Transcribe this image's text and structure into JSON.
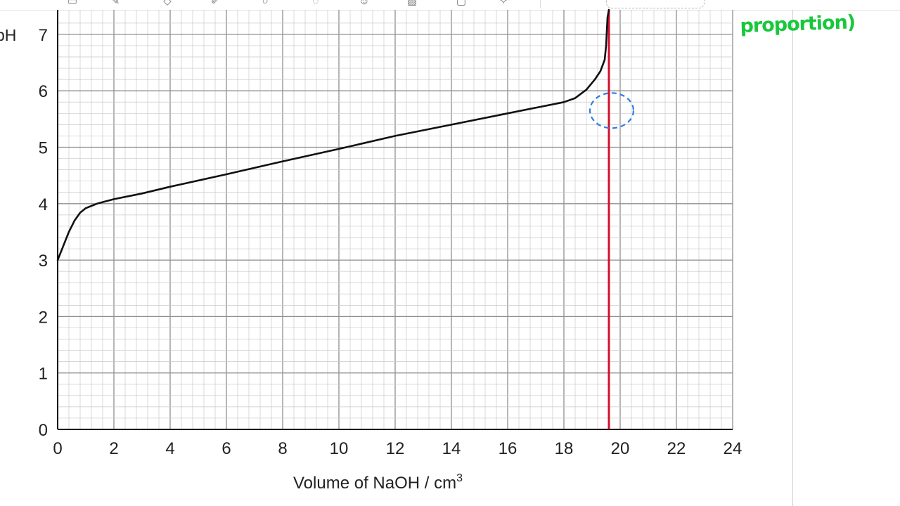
{
  "toolbar": {
    "icons": [
      "window-icon",
      "pen-icon",
      "eraser-icon",
      "highlighter-icon",
      "shapes-icon",
      "lasso-icon",
      "image-icon",
      "photo-icon",
      "text-box-icon",
      "laser-icon"
    ]
  },
  "annotation": {
    "text": "proportion)",
    "color": "#18c83b"
  },
  "colors": {
    "curve": "#111111",
    "vertical_line": "#d0112b",
    "selection_circle": "#2f7de1",
    "grid_minor": "#c9c9c9",
    "grid_major": "#8f8f8f"
  },
  "chart_data": {
    "type": "line",
    "title": "",
    "xlabel": "Volume of NaOH / cm",
    "xlabel_superscript": "3",
    "ylabel": "pH",
    "xlim": [
      0,
      24
    ],
    "ylim": [
      0,
      7.2
    ],
    "x_ticks": [
      "0",
      "2",
      "4",
      "6",
      "8",
      "10",
      "12",
      "14",
      "16",
      "18",
      "20",
      "22",
      "24"
    ],
    "y_ticks": [
      "0",
      "1",
      "2",
      "3",
      "4",
      "5",
      "6",
      "7"
    ],
    "grid": true,
    "series": [
      {
        "points": [
          [
            0,
            3.0
          ],
          [
            0.2,
            3.25
          ],
          [
            0.4,
            3.5
          ],
          [
            0.6,
            3.7
          ],
          [
            0.8,
            3.84
          ],
          [
            1.0,
            3.92
          ],
          [
            1.4,
            4.0
          ],
          [
            2.0,
            4.08
          ],
          [
            3.0,
            4.18
          ],
          [
            4.0,
            4.3
          ],
          [
            6.0,
            4.52
          ],
          [
            8.0,
            4.75
          ],
          [
            10.0,
            4.97
          ],
          [
            12.0,
            5.2
          ],
          [
            14.0,
            5.4
          ],
          [
            16.0,
            5.6
          ],
          [
            18.0,
            5.8
          ],
          [
            18.4,
            5.87
          ],
          [
            18.8,
            6.02
          ],
          [
            19.1,
            6.2
          ],
          [
            19.3,
            6.35
          ],
          [
            19.45,
            6.55
          ],
          [
            19.5,
            6.8
          ],
          [
            19.55,
            7.3
          ],
          [
            19.6,
            7.6
          ]
        ]
      }
    ],
    "vertical_line_x": 19.6,
    "highlight_point": {
      "x": 19.7,
      "y": 5.65
    }
  }
}
